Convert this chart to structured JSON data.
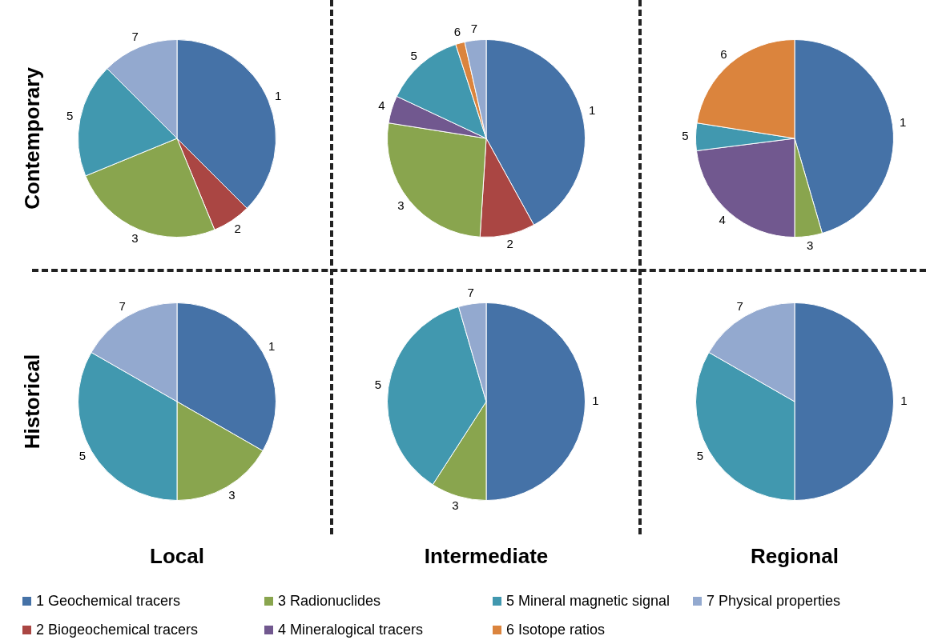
{
  "chart_data": [
    {
      "type": "pie",
      "ylabel": "Contemporary",
      "categories": [
        "1",
        "2",
        "3",
        "5",
        "7"
      ],
      "values": [
        37.5,
        6.3,
        25,
        18.7,
        12.5
      ],
      "colors": [
        "#4572a7",
        "#aa4643",
        "#89a54e",
        "#4198af",
        "#93a9cf"
      ]
    },
    {
      "type": "pie",
      "categories": [
        "1",
        "2",
        "3",
        "4",
        "5",
        "6",
        "7"
      ],
      "values": [
        42,
        9,
        26.5,
        4.5,
        13,
        1.5,
        3.5
      ],
      "colors": [
        "#4572a7",
        "#aa4643",
        "#89a54e",
        "#71588f",
        "#4198af",
        "#db843d",
        "#93a9cf"
      ]
    },
    {
      "type": "pie",
      "categories": [
        "1",
        "3",
        "4",
        "5",
        "6"
      ],
      "values": [
        45.5,
        4.5,
        23,
        4.5,
        22.5
      ],
      "colors": [
        "#4572a7",
        "#89a54e",
        "#71588f",
        "#4198af",
        "#db843d"
      ]
    },
    {
      "type": "pie",
      "ylabel": "Historical",
      "xlabel": "Local",
      "categories": [
        "1",
        "3",
        "5",
        "7"
      ],
      "values": [
        33.3,
        16.7,
        33.3,
        16.7
      ],
      "colors": [
        "#4572a7",
        "#89a54e",
        "#4198af",
        "#93a9cf"
      ]
    },
    {
      "type": "pie",
      "xlabel": "Intermediate",
      "categories": [
        "1",
        "3",
        "5",
        "7"
      ],
      "values": [
        50,
        9.1,
        36.4,
        4.5
      ],
      "colors": [
        "#4572a7",
        "#89a54e",
        "#4198af",
        "#93a9cf"
      ]
    },
    {
      "type": "pie",
      "xlabel": "Regional",
      "categories": [
        "1",
        "5",
        "7"
      ],
      "values": [
        50,
        33.3,
        16.7
      ],
      "colors": [
        "#4572a7",
        "#4198af",
        "#93a9cf"
      ]
    },
    {
      "type": "other",
      "categories": [
        "1 Geochemical tracers",
        "2 Biogeochemical tracers",
        "3 Radionuclides",
        "4 Mineralogical tracers",
        "5 Mineral magnetic signal",
        "6 Isotope ratios",
        "7 Physical properties"
      ],
      "colors": [
        "#4572a7",
        "#aa4643",
        "#89a54e",
        "#71588f",
        "#4198af",
        "#db843d",
        "#93a9cf"
      ]
    }
  ]
}
